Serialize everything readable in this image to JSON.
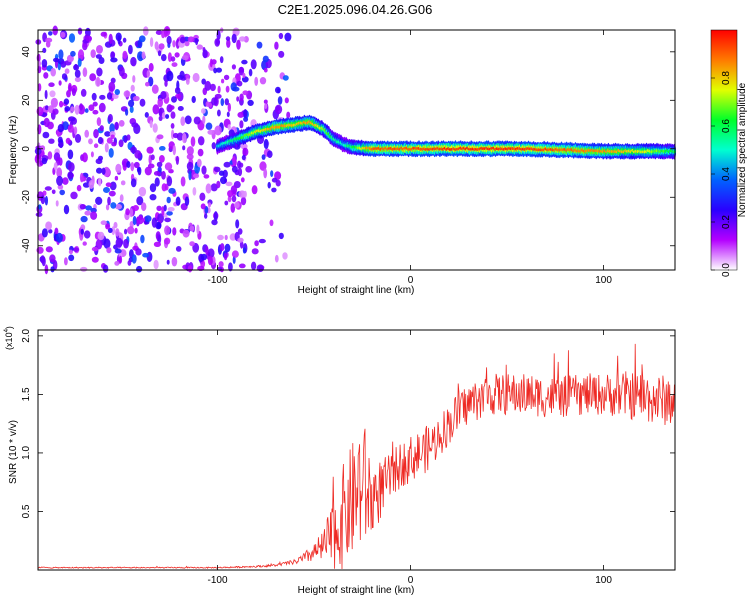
{
  "title": "C2E1.2025.096.04.26.G06",
  "colors": {
    "snr_line": "#ee2a24",
    "frame": "#000000",
    "colormap": [
      "#ffffff",
      "#b400ff",
      "#2a00ff",
      "#0062ff",
      "#00ffd0",
      "#00ff2a",
      "#e2ff00",
      "#ff7a00",
      "#ff0000"
    ]
  },
  "chart_data": [
    {
      "type": "heatmap",
      "title": "C2E1.2025.096.04.26.G06",
      "xlabel": "Height of straight line (km)",
      "ylabel": "Frequency (Hz)",
      "xlim": [
        -193,
        137
      ],
      "ylim": [
        -50,
        49
      ],
      "xticks": [
        -100,
        0,
        100
      ],
      "xtick_labels": [
        "-100",
        "0",
        "100"
      ],
      "yticks": [
        -40,
        -20,
        0,
        20,
        40
      ],
      "ytick_labels": [
        "-40",
        "-20",
        "0",
        "20",
        "40"
      ],
      "colorbar": {
        "label": "Normalized spectral amplitude",
        "range": [
          0,
          1
        ],
        "ticks": [
          0.0,
          0.2,
          0.4,
          0.6,
          0.8
        ],
        "tick_labels": [
          "0.0",
          "0.2",
          "0.4",
          "0.6",
          "0.8"
        ]
      },
      "noise_region": {
        "x": [
          -193,
          -75
        ],
        "amplitude": [
          0.05,
          0.25
        ]
      },
      "ridge": {
        "x": [
          -100,
          -90,
          -80,
          -70,
          -60,
          -52,
          -45,
          -40,
          -35,
          -30,
          -20,
          0,
          20,
          40,
          60,
          80,
          100,
          120,
          137
        ],
        "frequency": [
          1,
          4,
          7,
          9,
          10,
          11,
          8,
          4,
          2,
          0.5,
          0,
          0,
          0,
          0,
          0,
          -0.5,
          -1,
          -1,
          -1
        ],
        "peak_amplitude": [
          0.45,
          0.6,
          0.75,
          0.85,
          0.8,
          0.85,
          0.7,
          0.55,
          0.5,
          0.6,
          0.9,
          0.92,
          0.95,
          0.95,
          0.95,
          0.9,
          0.85,
          0.75,
          0.6
        ]
      }
    },
    {
      "type": "line",
      "xlabel": "Height of straight line (km)",
      "ylabel": "SNR (10 * v/v)",
      "unit_note": "(x10^4)",
      "xlim": [
        -193,
        137
      ],
      "ylim": [
        0,
        2.05
      ],
      "xticks": [
        -100,
        0,
        100
      ],
      "xtick_labels": [
        "-100",
        "0",
        "100"
      ],
      "yticks": [
        0.5,
        1.0,
        1.5,
        2.0
      ],
      "ytick_labels": [
        "0.5",
        "1.0",
        "1.5",
        "2.0"
      ],
      "series": [
        {
          "x": [
            -193,
            -150,
            -100,
            -80,
            -70,
            -60,
            -55,
            -50,
            -45,
            -40,
            -35,
            -30,
            -27,
            -25,
            -22,
            -20,
            -15,
            -10,
            -5,
            0,
            5,
            10,
            15,
            20,
            25,
            30,
            40,
            50,
            60,
            70,
            80,
            90,
            100,
            110,
            120,
            130,
            137
          ],
          "y": [
            0.02,
            0.02,
            0.02,
            0.03,
            0.04,
            0.07,
            0.1,
            0.15,
            0.2,
            0.3,
            0.45,
            0.6,
            0.7,
            0.75,
            0.65,
            0.6,
            0.7,
            0.8,
            0.9,
            0.95,
            1.0,
            1.05,
            1.15,
            1.25,
            1.35,
            1.42,
            1.5,
            1.5,
            1.5,
            1.48,
            1.48,
            1.5,
            1.5,
            1.5,
            1.48,
            1.45,
            1.45
          ],
          "spread": [
            0.005,
            0.005,
            0.005,
            0.008,
            0.01,
            0.02,
            0.05,
            0.08,
            0.15,
            0.3,
            0.45,
            0.5,
            0.55,
            0.6,
            0.45,
            0.35,
            0.25,
            0.2,
            0.2,
            0.2,
            0.2,
            0.2,
            0.18,
            0.18,
            0.18,
            0.18,
            0.18,
            0.18,
            0.18,
            0.18,
            0.18,
            0.18,
            0.18,
            0.2,
            0.22,
            0.22,
            0.22
          ]
        }
      ]
    }
  ]
}
